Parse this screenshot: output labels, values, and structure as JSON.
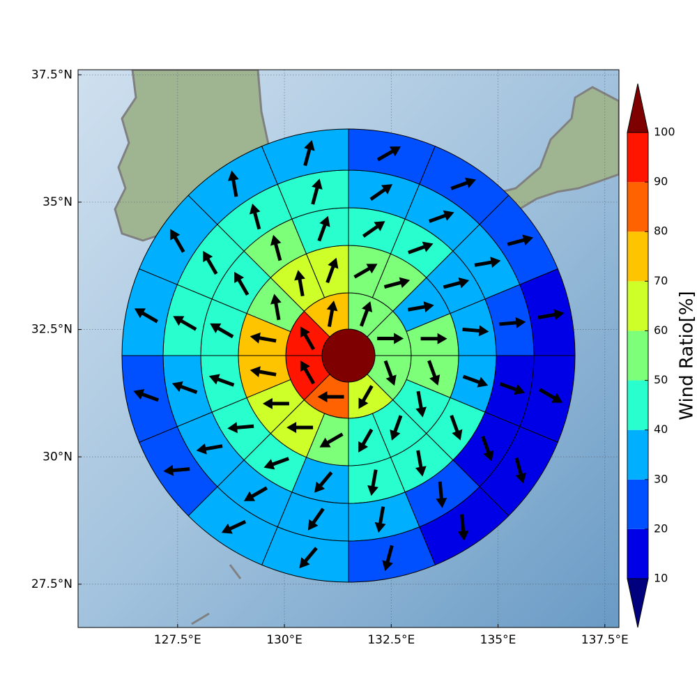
{
  "chart_data": {
    "type": "polar_sector",
    "xlim": [
      125.17,
      137.83
    ],
    "ylim": [
      26.65,
      37.6
    ],
    "xticks": [
      {
        "value": 127.5,
        "label": "127.5°E"
      },
      {
        "value": 130,
        "label": "130°E"
      },
      {
        "value": 132.5,
        "label": "132.5°E"
      },
      {
        "value": 135,
        "label": "135°E"
      },
      {
        "value": 137.5,
        "label": "137.5°E"
      }
    ],
    "yticks": [
      {
        "value": 27.5,
        "label": "27.5°N"
      },
      {
        "value": 30,
        "label": "30°N"
      },
      {
        "value": 32.5,
        "label": "32.5°N"
      },
      {
        "value": 35,
        "label": "35°N"
      },
      {
        "value": 37.5,
        "label": "37.5°N"
      }
    ],
    "grid": true,
    "colorbar": {
      "label": "Wind Ratio[%]",
      "levels": [
        10,
        20,
        30,
        40,
        50,
        60,
        70,
        80,
        90,
        100
      ],
      "colors": [
        "#0000e6",
        "#0050ff",
        "#00b0ff",
        "#29ffce",
        "#7dff7a",
        "#ceff29",
        "#ffc400",
        "#ff6200",
        "#ff1500"
      ],
      "under_color": "#00007f",
      "over_color": "#7f0000"
    },
    "center_value": 105,
    "rings": [
      {
        "values": [
          55,
          55,
          55,
          65,
          85,
          95,
          95,
          75
        ],
        "directions": [
          20,
          90,
          160,
          210,
          270,
          330,
          330,
          10
        ]
      },
      {
        "values": [
          55,
          55,
          35,
          55,
          55,
          45,
          45,
          45,
          55,
          65,
          65,
          75,
          75,
          55,
          65,
          65
        ],
        "directions": [
          60,
          75,
          80,
          90,
          160,
          170,
          200,
          210,
          240,
          270,
          270,
          280,
          280,
          350,
          350,
          20
        ]
      },
      {
        "values": [
          45,
          45,
          35,
          35,
          35,
          45,
          45,
          45,
          35,
          45,
          45,
          45,
          45,
          45,
          55,
          45
        ],
        "directions": [
          55,
          70,
          75,
          95,
          110,
          160,
          170,
          190,
          220,
          250,
          265,
          290,
          300,
          330,
          345,
          20
        ]
      },
      {
        "values": [
          35,
          35,
          35,
          25,
          15,
          15,
          25,
          35,
          35,
          35,
          35,
          35,
          45,
          45,
          45,
          45
        ],
        "directions": [
          55,
          70,
          80,
          85,
          110,
          160,
          175,
          190,
          215,
          240,
          260,
          290,
          300,
          330,
          345,
          15
        ]
      },
      {
        "values": [
          25,
          25,
          25,
          15,
          15,
          15,
          15,
          25,
          35,
          35,
          25,
          25,
          35,
          35,
          35,
          35
        ],
        "directions": [
          60,
          70,
          75,
          80,
          120,
          165,
          175,
          195,
          220,
          245,
          265,
          290,
          300,
          330,
          350,
          15
        ]
      }
    ]
  }
}
